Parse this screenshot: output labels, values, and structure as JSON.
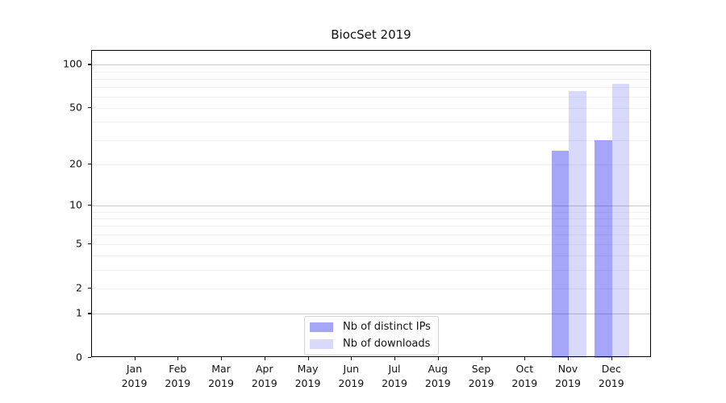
{
  "chart_data": {
    "type": "bar",
    "title": "BiocSet 2019",
    "categories": [
      "Jan",
      "Feb",
      "Mar",
      "Apr",
      "May",
      "Jun",
      "Jul",
      "Aug",
      "Sep",
      "Oct",
      "Nov",
      "Dec"
    ],
    "year_label": "2019",
    "series": [
      {
        "name": "Nb of distinct IPs",
        "color": "rgba(0,0,235,0.35)",
        "values": [
          0,
          0,
          0,
          0,
          0,
          0,
          0,
          0,
          0,
          0,
          25,
          30
        ]
      },
      {
        "name": "Nb of downloads",
        "color": "rgba(0,0,235,0.15)",
        "values": [
          0,
          0,
          0,
          0,
          0,
          0,
          0,
          0,
          0,
          0,
          66,
          74
        ]
      }
    ],
    "yscale": "log10(1+y)",
    "ylim": [
      0,
      125
    ],
    "ytick_labels": [
      0,
      1,
      2,
      5,
      10,
      20,
      50,
      100
    ],
    "major_gridlines": [
      1,
      10,
      100
    ],
    "minor_gridlines": [
      2,
      3,
      4,
      5,
      6,
      7,
      8,
      9,
      20,
      30,
      40,
      50,
      60,
      70,
      80,
      90
    ],
    "grid": true,
    "legend_position": "lower center",
    "colors": {
      "spine": "#000000",
      "major_grid": "#c9c9c9",
      "minor_grid": "#f0f0f0",
      "text": "#111111"
    }
  }
}
